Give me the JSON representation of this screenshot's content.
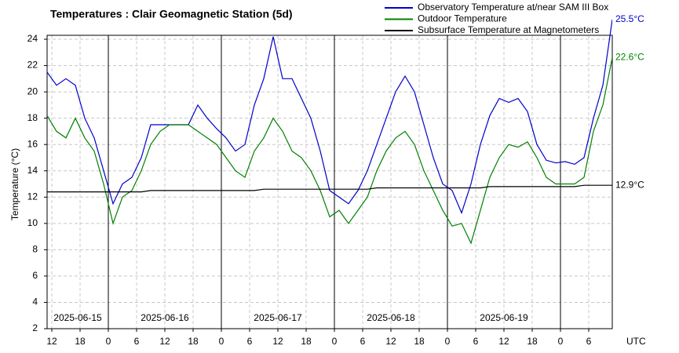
{
  "chart_data": {
    "type": "line",
    "title": "Temperatures : Clair Geomagnetic Station (5d)",
    "ylabel": "Temperature (°C)",
    "xlabel": "UTC",
    "day_labels": [
      "2025-06-15",
      "2025-06-16",
      "2025-06-17",
      "2025-06-18",
      "2025-06-19"
    ],
    "x": [
      11,
      13,
      15,
      17,
      19,
      21,
      23,
      25,
      27,
      29,
      31,
      33,
      35,
      37,
      39,
      41,
      43,
      45,
      47,
      49,
      51,
      53,
      55,
      57,
      59,
      61,
      63,
      65,
      67,
      69,
      71,
      73,
      75,
      77,
      79,
      81,
      83,
      85,
      87,
      89,
      91,
      93,
      95,
      97,
      99,
      101,
      103,
      105,
      107,
      109,
      111,
      113,
      115,
      117,
      119,
      121,
      123,
      125,
      127,
      129,
      131
    ],
    "xlim": [
      11,
      131
    ],
    "xticks": [
      12,
      18,
      {
        "value": 24,
        "label": "0"
      },
      {
        "value": 30,
        "label": "6"
      },
      {
        "value": 36,
        "label": "12"
      },
      {
        "value": 42,
        "label": "18"
      },
      {
        "value": 48,
        "label": "0"
      },
      {
        "value": 54,
        "label": "6"
      },
      {
        "value": 60,
        "label": "12"
      },
      {
        "value": 66,
        "label": "18"
      },
      {
        "value": 72,
        "label": "0"
      },
      {
        "value": 78,
        "label": "6"
      },
      {
        "value": 84,
        "label": "12"
      },
      {
        "value": 90,
        "label": "18"
      },
      {
        "value": 96,
        "label": "0"
      },
      {
        "value": 102,
        "label": "6"
      },
      {
        "value": 108,
        "label": "12"
      },
      {
        "value": 114,
        "label": "18"
      },
      {
        "value": 120,
        "label": "0"
      },
      {
        "value": 126,
        "label": "6"
      }
    ],
    "ylim": [
      2,
      24.3
    ],
    "yticks": [
      2,
      4,
      6,
      8,
      10,
      12,
      14,
      16,
      18,
      20,
      22,
      24
    ],
    "grid": true,
    "series": [
      {
        "name": "Observatory Temperature at/near SAM III Box",
        "color": "#0000cc",
        "values": [
          21.5,
          20.5,
          21,
          20.5,
          18,
          16.5,
          14,
          11.5,
          13,
          13.5,
          15,
          17.5,
          17.5,
          17.5,
          17.5,
          17.5,
          19,
          18,
          17.2,
          16.5,
          15.5,
          16,
          19,
          21,
          24.2,
          21,
          21,
          19.5,
          18,
          15.5,
          12.5,
          12,
          11.5,
          12.5,
          14,
          16,
          18,
          20,
          21.2,
          20,
          17.5,
          15,
          13,
          12.5,
          10.8,
          13,
          16,
          18.2,
          19.5,
          19.2,
          19.5,
          18.5,
          16,
          14.8,
          14.6,
          14.7,
          14.5,
          15,
          18,
          20.5,
          25.5
        ],
        "value_labels": [
          null,
          null,
          null,
          null,
          null,
          null,
          null,
          null,
          null,
          null,
          null,
          null,
          null,
          null,
          null,
          null,
          null,
          null,
          null,
          null,
          null,
          null,
          null,
          null,
          null,
          null,
          null,
          null,
          null,
          null,
          null,
          null,
          null,
          null,
          null,
          null,
          null,
          null,
          null,
          null,
          null,
          null,
          null,
          null,
          null,
          null,
          null,
          null,
          null,
          null,
          null,
          null,
          null,
          null,
          null,
          null,
          null,
          null,
          null,
          null,
          "25.5°C"
        ]
      },
      {
        "name": "Outdoor Temperature",
        "color": "#008000",
        "values": [
          18.2,
          17,
          16.5,
          18,
          16.5,
          15.5,
          13,
          10,
          12,
          12.5,
          14,
          16,
          17,
          17.5,
          17.5,
          17.5,
          17,
          16.5,
          16,
          15,
          14,
          13.5,
          15.5,
          16.5,
          18,
          17,
          15.5,
          15,
          14,
          12.5,
          10.5,
          11,
          10,
          11,
          12,
          14,
          15.5,
          16.5,
          17,
          16,
          14,
          12.5,
          11,
          9.8,
          10,
          8.5,
          11,
          13.5,
          15,
          16,
          15.8,
          16.2,
          15,
          13.5,
          13,
          13,
          13,
          13.5,
          17,
          19,
          22.6
        ],
        "value_labels": [
          null,
          null,
          null,
          null,
          null,
          null,
          null,
          null,
          null,
          null,
          null,
          null,
          null,
          null,
          null,
          null,
          null,
          null,
          null,
          null,
          null,
          null,
          null,
          null,
          null,
          null,
          null,
          null,
          null,
          null,
          null,
          null,
          null,
          null,
          null,
          null,
          null,
          null,
          null,
          null,
          null,
          null,
          null,
          null,
          null,
          null,
          null,
          null,
          null,
          null,
          null,
          null,
          null,
          null,
          null,
          null,
          null,
          null,
          null,
          null,
          "22.6°C"
        ]
      },
      {
        "name": "Subsurface Temperature at Magnetometers",
        "color": "#000000",
        "values": [
          12.4,
          12.4,
          12.4,
          12.4,
          12.4,
          12.4,
          12.4,
          12.4,
          12.4,
          12.4,
          12.4,
          12.5,
          12.5,
          12.5,
          12.5,
          12.5,
          12.5,
          12.5,
          12.5,
          12.5,
          12.5,
          12.5,
          12.5,
          12.6,
          12.6,
          12.6,
          12.6,
          12.6,
          12.6,
          12.6,
          12.6,
          12.6,
          12.6,
          12.6,
          12.6,
          12.7,
          12.7,
          12.7,
          12.7,
          12.7,
          12.7,
          12.7,
          12.7,
          12.7,
          12.7,
          12.7,
          12.7,
          12.8,
          12.8,
          12.8,
          12.8,
          12.8,
          12.8,
          12.8,
          12.8,
          12.8,
          12.8,
          12.9,
          12.9,
          12.9,
          12.9
        ],
        "value_labels": [
          null,
          null,
          null,
          null,
          null,
          null,
          null,
          null,
          null,
          null,
          null,
          null,
          null,
          null,
          null,
          null,
          null,
          null,
          null,
          null,
          null,
          null,
          null,
          null,
          null,
          null,
          null,
          null,
          null,
          null,
          null,
          null,
          null,
          null,
          null,
          null,
          null,
          null,
          null,
          null,
          null,
          null,
          null,
          null,
          null,
          null,
          null,
          null,
          null,
          null,
          null,
          null,
          null,
          null,
          null,
          null,
          null,
          null,
          null,
          null,
          "12.9°C"
        ]
      }
    ]
  }
}
